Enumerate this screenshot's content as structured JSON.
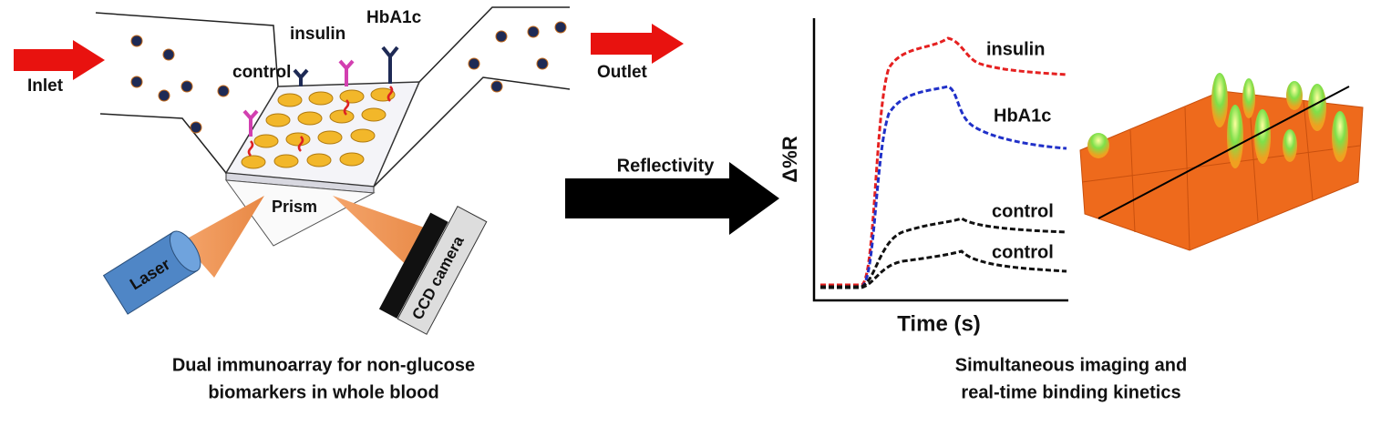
{
  "left_panel": {
    "inlet": "Inlet",
    "outlet": "Outlet",
    "labels": {
      "control": "control",
      "insulin": "insulin",
      "hba1c": "HbA1c"
    },
    "prism": "Prism",
    "laser": "Laser",
    "camera": "CCD camera",
    "caption": [
      "Dual immunoarray for non-glucose",
      "biomarkers in whole blood"
    ]
  },
  "arrow_label": "Reflectivity",
  "plot": {
    "y_label": "Δ%R",
    "x_label": "Time (s)",
    "curves": [
      "insulin",
      "HbA1c",
      "control",
      "control"
    ]
  },
  "right_caption": [
    "Simultaneous imaging and",
    "real-time binding kinetics"
  ]
}
